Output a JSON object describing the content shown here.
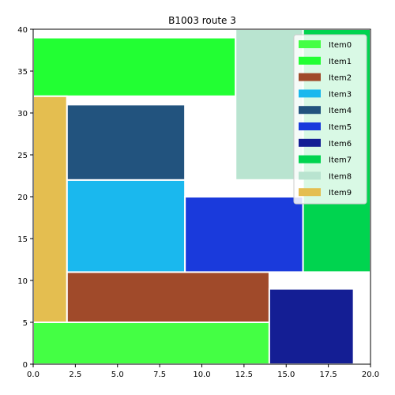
{
  "chart_data": {
    "type": "treemap",
    "title": "B1003 route 3",
    "xlabel": "",
    "ylabel": "",
    "xlim": [
      0,
      20
    ],
    "ylim": [
      0,
      40
    ],
    "xticks": [
      "0.0",
      "2.5",
      "5.0",
      "7.5",
      "10.0",
      "12.5",
      "15.0",
      "17.5",
      "20.0"
    ],
    "yticks": [
      "0",
      "5",
      "10",
      "15",
      "20",
      "25",
      "30",
      "35",
      "40"
    ],
    "grid": false,
    "legend_position": "top-right",
    "items": [
      {
        "name": "Item0",
        "color": "#44ff44",
        "x0": 0,
        "y0": 0,
        "x1": 14,
        "y1": 5
      },
      {
        "name": "Item1",
        "color": "#22ff33",
        "x0": 0,
        "y0": 32,
        "x1": 12,
        "y1": 39
      },
      {
        "name": "Item2",
        "color": "#a04a2a",
        "x0": 2,
        "y0": 5,
        "x1": 14,
        "y1": 11
      },
      {
        "name": "Item3",
        "color": "#1ab8ee",
        "x0": 2,
        "y0": 11,
        "x1": 9,
        "y1": 22
      },
      {
        "name": "Item4",
        "color": "#22537e",
        "x0": 2,
        "y0": 22,
        "x1": 9,
        "y1": 31
      },
      {
        "name": "Item5",
        "color": "#1a3adc",
        "x0": 9,
        "y0": 11,
        "x1": 16,
        "y1": 20
      },
      {
        "name": "Item6",
        "color": "#141e94",
        "x0": 14,
        "y0": 0,
        "x1": 19,
        "y1": 9
      },
      {
        "name": "Item7",
        "color": "#00d44f",
        "x0": 16,
        "y0": 11,
        "x1": 20,
        "y1": 40
      },
      {
        "name": "Item8",
        "color": "#b9e4d0",
        "x0": 12,
        "y0": 22,
        "x1": 16,
        "y1": 40
      },
      {
        "name": "Item9",
        "color": "#e4be50",
        "x0": 0,
        "y0": 5,
        "x1": 2,
        "y1": 32
      }
    ]
  }
}
